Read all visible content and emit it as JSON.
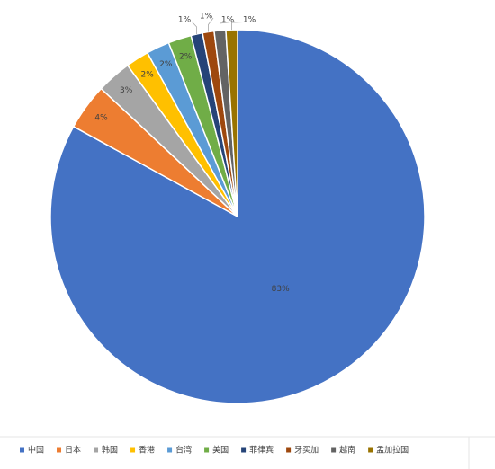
{
  "chart_data": {
    "type": "pie",
    "categories": [
      "中国",
      "日本",
      "韩国",
      "香港",
      "台湾",
      "美国",
      "菲律宾",
      "牙买加",
      "越南",
      "孟加拉国"
    ],
    "values": [
      83,
      4,
      3,
      2,
      2,
      2,
      1,
      1,
      1,
      1
    ],
    "value_labels": [
      "83%",
      "4%",
      "3%",
      "2%",
      "2%",
      "2%",
      "1%",
      "1%",
      "1%",
      "1%"
    ],
    "colors": [
      "#4472c4",
      "#ed7d31",
      "#a5a5a5",
      "#ffc000",
      "#5b9bd5",
      "#70ad47",
      "#264478",
      "#9e480e",
      "#636363",
      "#997300"
    ],
    "legend": "bottom"
  }
}
